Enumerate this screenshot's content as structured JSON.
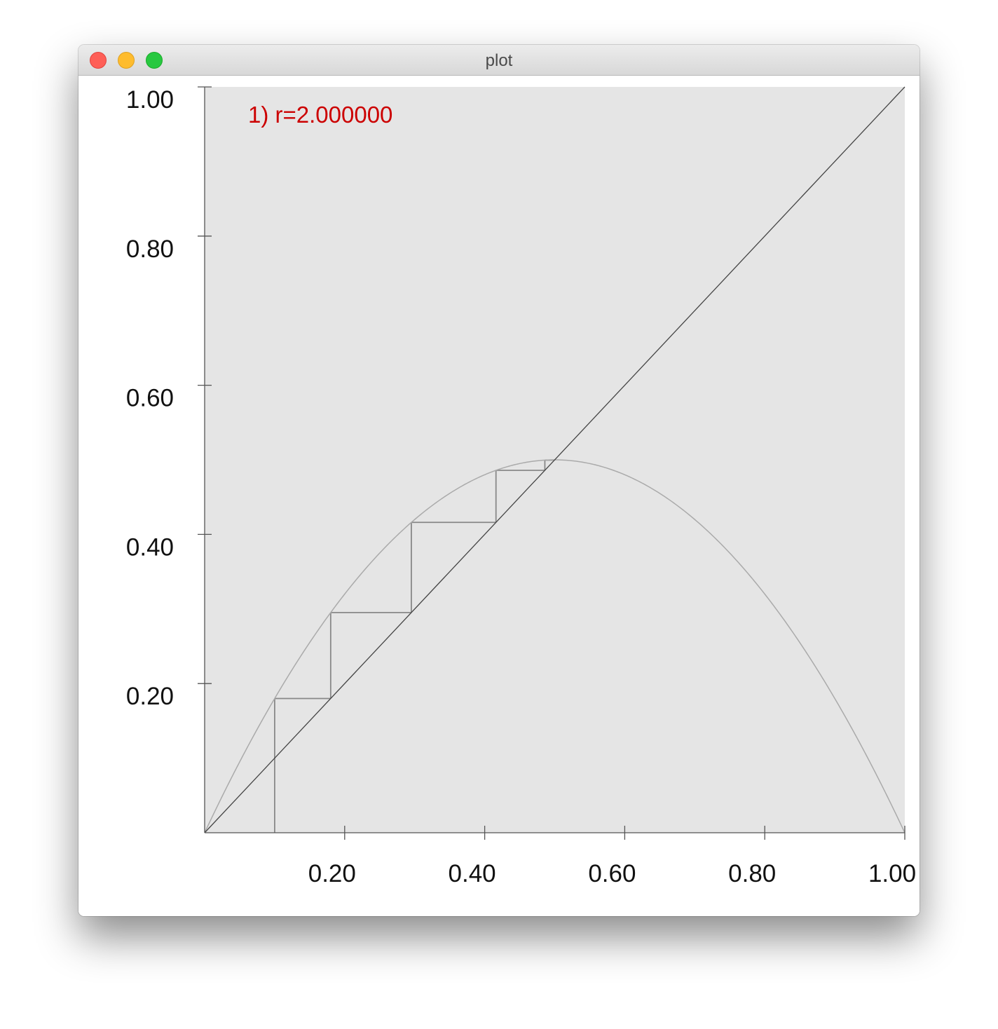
{
  "window": {
    "title": "plot"
  },
  "chart_data": {
    "type": "line",
    "annotation": "1) r=2.000000",
    "annotation_color": "#cc0000",
    "background_color": "#e5e5e5",
    "xlim": [
      0,
      1
    ],
    "ylim": [
      0,
      1
    ],
    "x_ticks": [
      0.2,
      0.4,
      0.6,
      0.8,
      1.0
    ],
    "x_tick_labels": [
      "0.20",
      "0.40",
      "0.60",
      "0.80",
      "1.00"
    ],
    "y_ticks": [
      0.2,
      0.4,
      0.6,
      0.8,
      1.0
    ],
    "y_tick_labels": [
      "0.20",
      "0.40",
      "0.60",
      "0.80",
      "1.00"
    ],
    "r": 2.0,
    "curve": {
      "function": "r*x*(1-x)",
      "color": "#aaaaaa"
    },
    "diagonal": {
      "function": "y=x",
      "color": "#444444"
    },
    "cobweb": {
      "x0": 0.1,
      "color": "#888888",
      "iterates": [
        0.1,
        0.18,
        0.2952,
        0.41611392,
        0.48592625,
        0.49960426,
        0.49999969
      ]
    }
  }
}
